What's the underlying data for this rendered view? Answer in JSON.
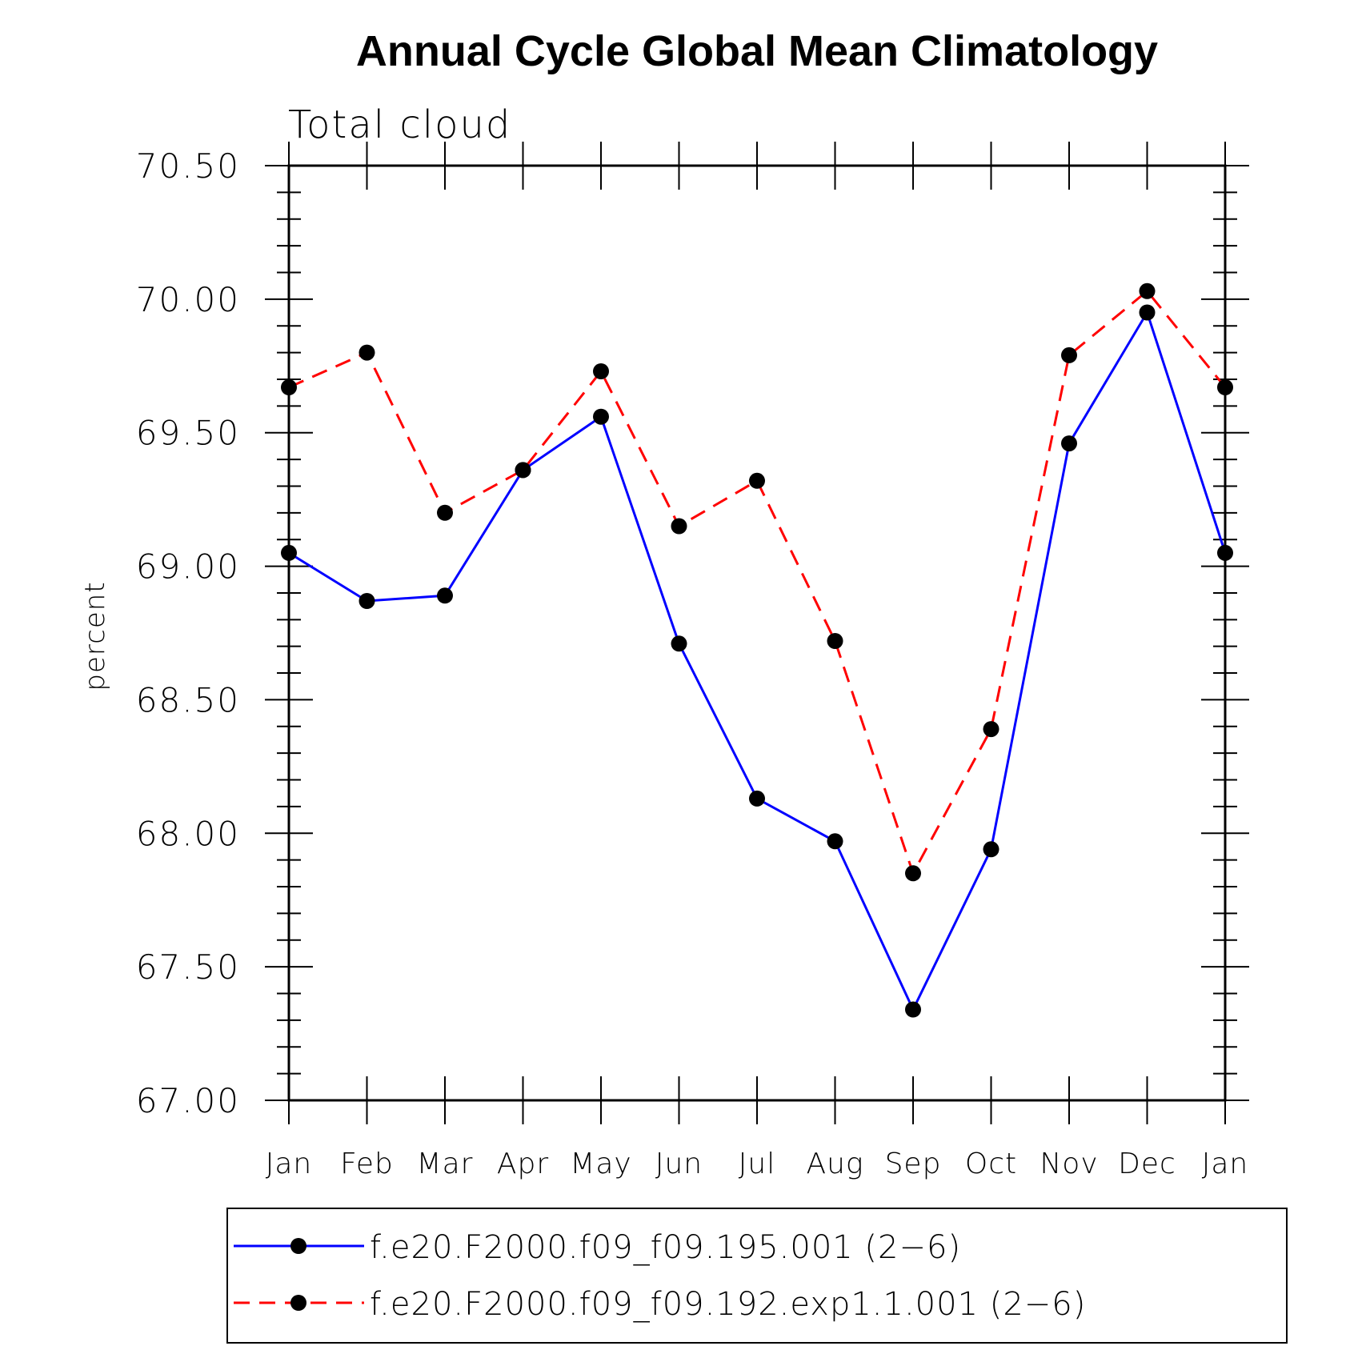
{
  "chart_data": {
    "type": "line",
    "title": "Annual Cycle Global Mean Climatology",
    "subtitle": "Total cloud",
    "xlabel": "",
    "ylabel": "percent",
    "categories": [
      "Jan",
      "Feb",
      "Mar",
      "Apr",
      "May",
      "Jun",
      "Jul",
      "Aug",
      "Sep",
      "Oct",
      "Nov",
      "Dec",
      "Jan"
    ],
    "ylim": [
      67.0,
      70.5
    ],
    "ytick_labels": [
      "67.00",
      "67.50",
      "68.00",
      "68.50",
      "69.00",
      "69.50",
      "70.00",
      "70.50"
    ],
    "legend_position": "bottom",
    "series": [
      {
        "name": "f.e20.F2000.f09_f09.195.001 (2−6)",
        "color": "#0000ff",
        "line_style": "solid",
        "marker": "filled-circle",
        "values": [
          69.05,
          68.87,
          68.89,
          69.36,
          69.56,
          68.71,
          68.13,
          67.97,
          67.34,
          67.94,
          69.46,
          69.95,
          69.05
        ]
      },
      {
        "name": "f.e20.F2000.f09_f09.192.exp1.1.001 (2−6)",
        "color": "#ff0000",
        "line_style": "dashed",
        "marker": "filled-circle",
        "values": [
          69.67,
          69.8,
          69.2,
          69.36,
          69.73,
          69.15,
          69.32,
          68.72,
          67.85,
          68.39,
          69.79,
          70.03,
          69.67
        ]
      }
    ]
  }
}
